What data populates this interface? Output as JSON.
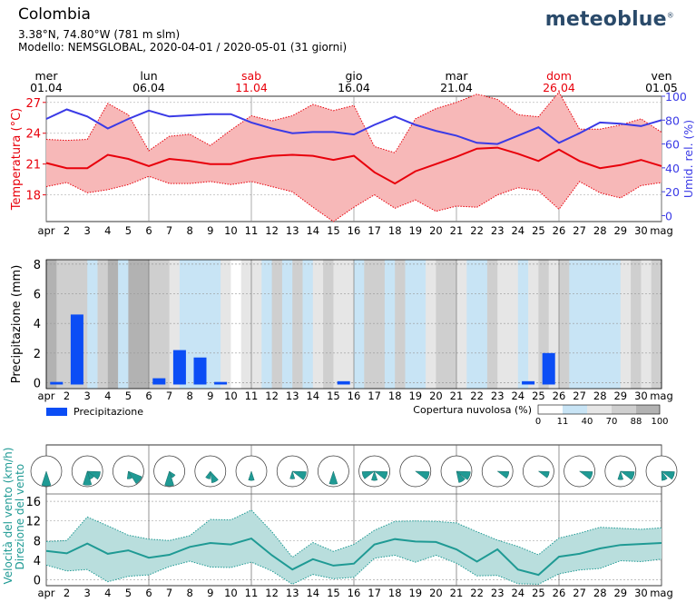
{
  "header": {
    "title": "Colombia",
    "coords": "3.38°N, 74.80°W (781 m slm)",
    "model": "Modello: NEMSGLOBAL, 2020-04-01 / 2020-05-01 (31 giorni)",
    "logo": "meteoblue",
    "logo_mark": "®"
  },
  "colors": {
    "temp": "#e8000b",
    "temp_fill": "#f7b8b8",
    "hum": "#3a3ae6",
    "precip": "#0b4df5",
    "wind": "#1f9a94",
    "wind_fill": "#b9dedd",
    "weekend": "#e8000b",
    "grid": "#d0d0d0"
  },
  "top_axis": [
    {
      "day": 1,
      "weekday": "mer",
      "date": "01.04",
      "weekend": false
    },
    {
      "day": 6,
      "weekday": "lun",
      "date": "06.04",
      "weekend": false
    },
    {
      "day": 11,
      "weekday": "sab",
      "date": "11.04",
      "weekend": true
    },
    {
      "day": 16,
      "weekday": "gio",
      "date": "16.04",
      "weekend": false
    },
    {
      "day": 21,
      "weekday": "mar",
      "date": "21.04",
      "weekend": false
    },
    {
      "day": 26,
      "weekday": "dom",
      "date": "26.04",
      "weekend": true
    },
    {
      "day": 31,
      "weekday": "ven",
      "date": "01.05",
      "weekend": false
    }
  ],
  "x_labels": [
    "apr",
    "2",
    "3",
    "4",
    "5",
    "6",
    "7",
    "8",
    "9",
    "10",
    "11",
    "12",
    "13",
    "14",
    "15",
    "16",
    "17",
    "18",
    "19",
    "20",
    "21",
    "22",
    "23",
    "24",
    "25",
    "26",
    "27",
    "28",
    "29",
    "30",
    "mag"
  ],
  "chart_data": [
    {
      "type": "line",
      "title": "",
      "xlabel": "",
      "ylabel": "Temperatura (°C)",
      "y2label": "Umid. rel. (%)",
      "ylim": [
        15.4,
        27.6
      ],
      "y2lim": [
        -5,
        100
      ],
      "yticks": [
        18,
        21,
        24,
        27
      ],
      "y2ticks": [
        0,
        20,
        40,
        60,
        80,
        100
      ],
      "x": [
        1,
        2,
        3,
        4,
        5,
        6,
        7,
        8,
        9,
        10,
        11,
        12,
        13,
        14,
        15,
        16,
        17,
        18,
        19,
        20,
        21,
        22,
        23,
        24,
        25,
        26,
        27,
        28,
        29,
        30,
        31
      ],
      "series": [
        {
          "name": "",
          "role": "temp_max",
          "values": [
            23.4,
            23.3,
            23.4,
            26.9,
            25.8,
            22.3,
            23.7,
            23.9,
            22.8,
            24.3,
            25.7,
            25.2,
            25.7,
            26.8,
            26.2,
            26.7,
            22.7,
            22.1,
            25.4,
            26.4,
            27.0,
            27.8,
            27.3,
            25.8,
            25.6,
            28.0,
            24.4,
            24.4,
            24.8,
            25.4,
            24.1
          ]
        },
        {
          "name": "",
          "role": "temp_mean",
          "values": [
            21.1,
            20.6,
            20.6,
            21.9,
            21.5,
            20.8,
            21.5,
            21.3,
            21.0,
            21.0,
            21.5,
            21.8,
            21.9,
            21.8,
            21.4,
            21.8,
            20.2,
            19.1,
            20.3,
            21.0,
            21.7,
            22.5,
            22.6,
            22.0,
            21.3,
            22.4,
            21.3,
            20.6,
            20.9,
            21.4,
            20.8
          ]
        },
        {
          "name": "",
          "role": "temp_min",
          "values": [
            18.8,
            19.2,
            18.2,
            18.5,
            19.0,
            19.8,
            19.1,
            19.1,
            19.3,
            19.0,
            19.3,
            18.8,
            18.3,
            16.8,
            15.4,
            16.8,
            18.0,
            16.7,
            17.5,
            16.4,
            16.9,
            16.8,
            18.0,
            18.7,
            18.4,
            16.6,
            19.3,
            18.2,
            17.7,
            18.9,
            19.2
          ]
        },
        {
          "name": "",
          "role": "humidity",
          "values": [
            81,
            89,
            83,
            73,
            81,
            88,
            83,
            84,
            85,
            85,
            78,
            73,
            69,
            70,
            70,
            68,
            76,
            83,
            76,
            71,
            67,
            61,
            60,
            67,
            74,
            61,
            69,
            78,
            77,
            75,
            80
          ]
        }
      ]
    },
    {
      "type": "bar",
      "title": "",
      "xlabel": "",
      "ylabel": "Precipitazione (mm)",
      "ylim": [
        -0.4,
        8.3
      ],
      "yticks": [
        0,
        2,
        4,
        6,
        8
      ],
      "categories": [
        1,
        2,
        3,
        4,
        5,
        6,
        7,
        8,
        9,
        10,
        11,
        12,
        13,
        14,
        15,
        16,
        17,
        18,
        19,
        20,
        21,
        22,
        23,
        24,
        25,
        26,
        27,
        28,
        29,
        30
      ],
      "values": [
        0.05,
        4.6,
        0,
        0,
        0,
        0.3,
        2.2,
        1.7,
        0.05,
        0,
        0,
        0,
        0,
        0,
        0.1,
        0,
        0,
        0,
        0,
        0,
        0,
        0,
        0,
        0.1,
        2.0,
        0,
        0,
        0,
        0,
        0
      ],
      "cloud_cover": [
        90,
        85,
        85,
        70,
        20,
        80,
        88,
        20,
        88,
        88,
        80,
        70,
        60,
        35,
        18,
        38,
        15,
        62,
        10,
        50,
        55,
        25,
        72,
        20,
        72,
        30,
        65,
        70,
        58,
        45,
        25,
        70,
        82,
        18,
        70,
        12,
        15,
        52,
        78,
        85,
        68,
        20,
        30,
        72,
        40,
        45,
        35,
        62,
        85,
        65,
        70,
        20,
        12,
        25,
        20,
        30,
        58,
        70,
        40,
        85
      ],
      "legend": {
        "precip_label": "Precipitazione",
        "cloud_label": "Copertura nuvolosa (%)",
        "cloud_ticks": [
          "0",
          "11",
          "40",
          "70",
          "88",
          "100"
        ]
      }
    },
    {
      "type": "area",
      "title": "",
      "xlabel": "",
      "ylabel": "Velocità del vento (km/h)",
      "ylabel2": "Direzione del vento",
      "ylim": [
        -1.2,
        17.5
      ],
      "yticks": [
        0,
        4,
        8,
        12,
        16
      ],
      "x": [
        1,
        2,
        3,
        4,
        5,
        6,
        7,
        8,
        9,
        10,
        11,
        12,
        13,
        14,
        15,
        16,
        17,
        18,
        19,
        20,
        21,
        22,
        23,
        24,
        25,
        26,
        27,
        28,
        29,
        30,
        31
      ],
      "series": [
        {
          "name": "",
          "role": "wind_max",
          "values": [
            7.8,
            8.0,
            12.8,
            11.0,
            9.1,
            8.3,
            8.0,
            9.0,
            12.3,
            12.2,
            14.2,
            9.8,
            4.6,
            7.6,
            5.8,
            7.2,
            10.1,
            11.9,
            12.0,
            11.9,
            11.6,
            9.8,
            8.1,
            6.8,
            5.1,
            8.5,
            9.5,
            10.7,
            10.5,
            10.3,
            10.6
          ]
        },
        {
          "name": "",
          "role": "wind_mean",
          "values": [
            5.9,
            5.4,
            7.4,
            5.3,
            6.0,
            4.5,
            5.1,
            6.7,
            7.5,
            7.2,
            8.4,
            5.0,
            2.1,
            4.2,
            2.9,
            3.3,
            7.2,
            8.3,
            7.8,
            7.7,
            6.2,
            3.7,
            6.2,
            2.1,
            1.0,
            4.7,
            5.3,
            6.4,
            7.1,
            7.3,
            7.5
          ]
        },
        {
          "name": "",
          "role": "wind_min",
          "values": [
            3.0,
            1.8,
            2.1,
            -0.4,
            0.7,
            1.0,
            2.7,
            3.8,
            2.6,
            2.5,
            3.6,
            1.8,
            -0.9,
            1.1,
            0.2,
            0.5,
            4.4,
            5.0,
            3.6,
            5.0,
            3.4,
            0.8,
            0.9,
            -0.8,
            -0.9,
            1.2,
            2.0,
            2.3,
            3.9,
            3.7,
            4.2
          ]
        }
      ],
      "wind_roses": [
        {
          "day": 1,
          "sectors": [
            {
              "dir": 180,
              "r": 0.95,
              "w": 36
            }
          ]
        },
        {
          "day": 3,
          "sectors": [
            {
              "dir": 180,
              "r": 0.9,
              "w": 36
            },
            {
              "dir": 110,
              "r": 0.85,
              "w": 36
            },
            {
              "dir": 145,
              "r": 0.55,
              "w": 36
            }
          ]
        },
        {
          "day": 5,
          "sectors": [
            {
              "dir": 130,
              "r": 0.95,
              "w": 36
            },
            {
              "dir": 170,
              "r": 0.5,
              "w": 36
            }
          ]
        },
        {
          "day": 7,
          "sectors": [
            {
              "dir": 180,
              "r": 0.95,
              "w": 36
            },
            {
              "dir": 140,
              "r": 0.45,
              "w": 36
            }
          ]
        },
        {
          "day": 9,
          "sectors": [
            {
              "dir": 155,
              "r": 0.75,
              "w": 36
            },
            {
              "dir": 200,
              "r": 0.5,
              "w": 36
            }
          ]
        },
        {
          "day": 11,
          "sectors": [
            {
              "dir": 180,
              "r": 0.6,
              "w": 36
            }
          ]
        },
        {
          "day": 13,
          "sectors": [
            {
              "dir": 110,
              "r": 0.9,
              "w": 36
            },
            {
              "dir": 180,
              "r": 0.5,
              "w": 36
            }
          ]
        },
        {
          "day": 15,
          "sectors": [
            {
              "dir": 180,
              "r": 0.85,
              "w": 36
            }
          ]
        },
        {
          "day": 17,
          "sectors": [
            {
              "dir": 110,
              "r": 0.85,
              "w": 36
            },
            {
              "dir": 250,
              "r": 0.8,
              "w": 36
            },
            {
              "dir": 180,
              "r": 0.6,
              "w": 36
            }
          ]
        },
        {
          "day": 19,
          "sectors": [
            {
              "dir": 110,
              "r": 0.9,
              "w": 36
            }
          ]
        },
        {
          "day": 21,
          "sectors": [
            {
              "dir": 110,
              "r": 0.9,
              "w": 36
            },
            {
              "dir": 150,
              "r": 0.75,
              "w": 36
            }
          ]
        },
        {
          "day": 23,
          "sectors": [
            {
              "dir": 110,
              "r": 0.75,
              "w": 36
            }
          ]
        },
        {
          "day": 25,
          "sectors": [
            {
              "dir": 110,
              "r": 0.7,
              "w": 36
            }
          ]
        },
        {
          "day": 27,
          "sectors": [
            {
              "dir": 110,
              "r": 0.85,
              "w": 36
            }
          ]
        },
        {
          "day": 29,
          "sectors": [
            {
              "dir": 110,
              "r": 0.9,
              "w": 36
            },
            {
              "dir": 180,
              "r": 0.55,
              "w": 36
            }
          ]
        },
        {
          "day": 31,
          "sectors": [
            {
              "dir": 110,
              "r": 0.85,
              "w": 36
            },
            {
              "dir": 160,
              "r": 0.6,
              "w": 36
            }
          ]
        }
      ]
    }
  ]
}
